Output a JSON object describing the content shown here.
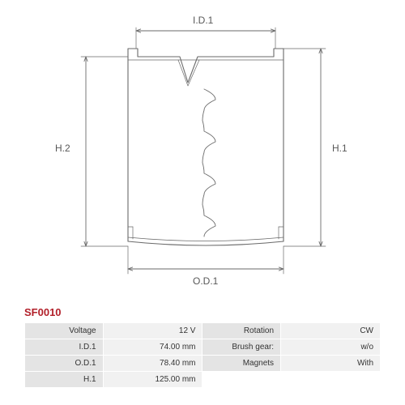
{
  "part_code": "SF0010",
  "part_code_color": "#b2202a",
  "diagram": {
    "labels": {
      "id1": "I.D.1",
      "od1": "O.D.1",
      "h1": "H.1",
      "h2": "H.2"
    },
    "stroke_color": "#6a6a6a",
    "stroke_width": 1.1,
    "background": "#ffffff"
  },
  "specs": {
    "rows": [
      {
        "l1": "Voltage",
        "v1": "12 V",
        "l2": "Rotation",
        "v2": "CW"
      },
      {
        "l1": "I.D.1",
        "v1": "74.00 mm",
        "l2": "Brush gear:",
        "v2": "w/o"
      },
      {
        "l1": "O.D.1",
        "v1": "78.40 mm",
        "l2": "Magnets",
        "v2": "With"
      },
      {
        "l1": "H.1",
        "v1": "125.00 mm",
        "l2": "",
        "v2": ""
      }
    ],
    "label_bg": "#e4e4e4",
    "value_bg": "#f1f1f1",
    "border_color": "#ffffff",
    "fontsize": 10
  }
}
